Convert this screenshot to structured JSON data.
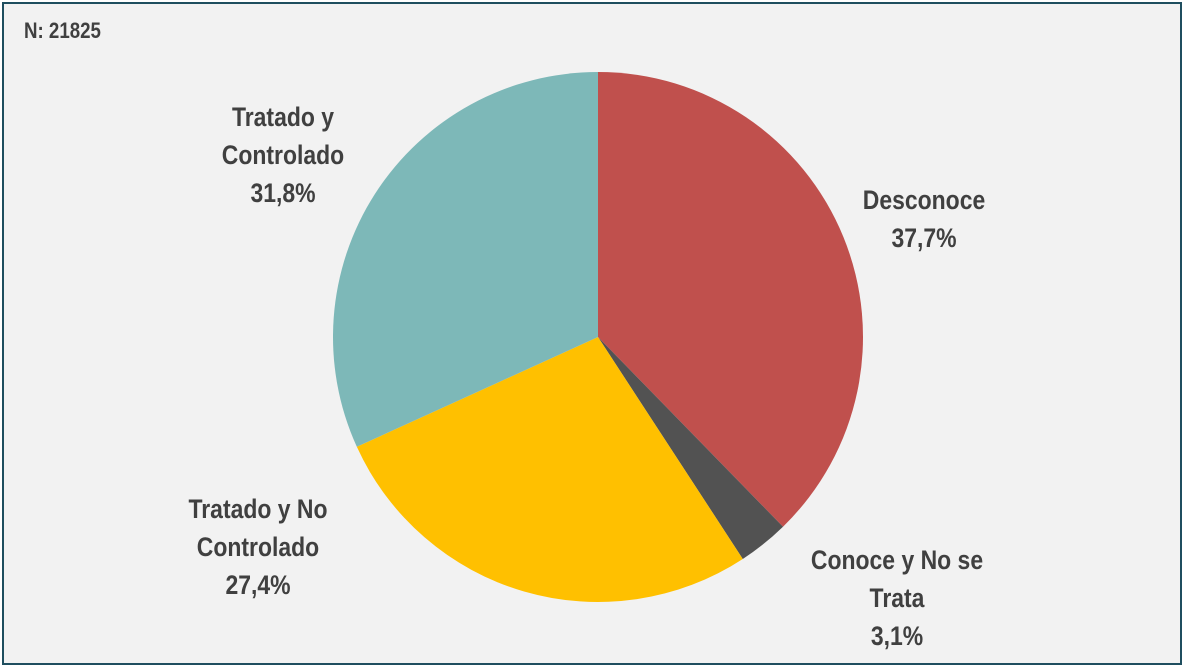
{
  "header": {
    "n_label": "N: 21825"
  },
  "chart_data": {
    "type": "pie",
    "start_angle_deg": 0,
    "direction": "clockwise",
    "slices": [
      {
        "label_lines": [
          "Desconoce"
        ],
        "value_label": "37,7%",
        "value": 37.7,
        "color": "#c0504d"
      },
      {
        "label_lines": [
          "Conoce y No se",
          "Trata"
        ],
        "value_label": "3,1%",
        "value": 3.1,
        "color": "#525252"
      },
      {
        "label_lines": [
          "Tratado y No",
          "Controlado"
        ],
        "value_label": "27,4%",
        "value": 27.4,
        "color": "#ffc000"
      },
      {
        "label_lines": [
          "Tratado y",
          "Controlado"
        ],
        "value_label": "31,8%",
        "value": 31.8,
        "color": "#7db8b8"
      }
    ]
  }
}
